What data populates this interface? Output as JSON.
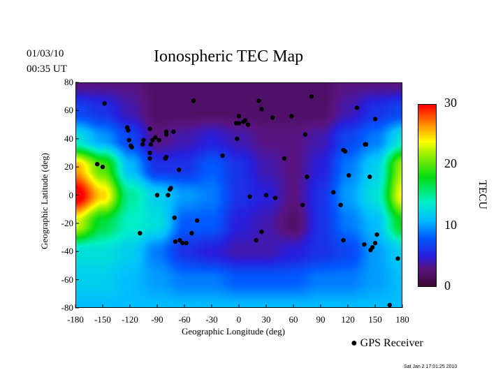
{
  "header": {
    "date": "01/03/10",
    "time": "00:35 UT",
    "title": "Ionospheric TEC Map"
  },
  "legend": {
    "label": "GPS Receiver"
  },
  "footer": {
    "timestamp": "Sat Jan  2 17:01:25 2010"
  },
  "colors": {
    "station": "#000000",
    "coast": "#000000"
  },
  "chart_data": {
    "type": "heatmap",
    "title": "Ionospheric TEC Map",
    "xlabel": "Geographic Longitude (deg)",
    "ylabel": "Geographic Latitude (deg)",
    "xlim": [
      -180,
      180
    ],
    "ylim": [
      -80,
      80
    ],
    "xticks": [
      "-180",
      "-150",
      "-120",
      "-90",
      "-60",
      "-30",
      "0",
      "30",
      "60",
      "90",
      "120",
      "150",
      "180"
    ],
    "yticks": [
      "80",
      "60",
      "40",
      "20",
      "0",
      "-20",
      "-40",
      "-60",
      "-80"
    ],
    "colorbar": {
      "label": "TECU",
      "range": [
        0,
        30
      ],
      "ticks": [
        "30",
        "20",
        "10",
        "0"
      ]
    },
    "grid": {
      "lons": [
        -180,
        -150,
        -120,
        -90,
        -60,
        -30,
        0,
        30,
        60,
        90,
        120,
        150,
        180
      ],
      "lats": [
        80,
        60,
        40,
        20,
        0,
        -20,
        -40,
        -60,
        -80
      ],
      "tec": [
        [
          3,
          3,
          3,
          2,
          2,
          2,
          2,
          2,
          2,
          2,
          3,
          3,
          3
        ],
        [
          7,
          6,
          4,
          2,
          2,
          2,
          2,
          2,
          2,
          2,
          4,
          6,
          7
        ],
        [
          13,
          10,
          7,
          3,
          4,
          5,
          4,
          3,
          3,
          4,
          7,
          9,
          13
        ],
        [
          26,
          20,
          11,
          6,
          6,
          8,
          6,
          4,
          3,
          5,
          9,
          12,
          22
        ],
        [
          31,
          25,
          15,
          12,
          10,
          9,
          6,
          5,
          3,
          6,
          10,
          13,
          24
        ],
        [
          23,
          17,
          14,
          13,
          8,
          8,
          5,
          4,
          2,
          6,
          9,
          11,
          18
        ],
        [
          13,
          13,
          12,
          9,
          6,
          5,
          4,
          4,
          5,
          6,
          7,
          10,
          12
        ],
        [
          12,
          12,
          11,
          10,
          9,
          9,
          8,
          8,
          8,
          9,
          9,
          10,
          11
        ],
        [
          11,
          11,
          11,
          11,
          11,
          11,
          11,
          11,
          11,
          11,
          11,
          11,
          11
        ]
      ]
    },
    "stations": [
      [
        -148,
        65
      ],
      [
        -50,
        67
      ],
      [
        -123,
        48
      ],
      [
        -122,
        46
      ],
      [
        -121,
        39
      ],
      [
        -119,
        35
      ],
      [
        -118,
        34
      ],
      [
        -105,
        39
      ],
      [
        -98,
        47
      ],
      [
        -97,
        36
      ],
      [
        -95,
        39
      ],
      [
        -92,
        41
      ],
      [
        -88,
        39
      ],
      [
        -80,
        43
      ],
      [
        -80,
        45
      ],
      [
        -72,
        45
      ],
      [
        -106,
        36
      ],
      [
        -98,
        30
      ],
      [
        -98,
        26
      ],
      [
        -81,
        26
      ],
      [
        -80,
        27
      ],
      [
        -66,
        18
      ],
      [
        -90,
        0
      ],
      [
        -78,
        0
      ],
      [
        -75,
        5
      ],
      [
        -76,
        4
      ],
      [
        -71,
        -16
      ],
      [
        -109,
        -27
      ],
      [
        -70,
        -33
      ],
      [
        -65,
        -32
      ],
      [
        -62,
        -34
      ],
      [
        -58,
        -34
      ],
      [
        -52,
        -27
      ],
      [
        -46,
        -18
      ],
      [
        -156,
        22
      ],
      [
        -150,
        20
      ],
      [
        -18,
        28
      ],
      [
        -2,
        40
      ],
      [
        -3,
        51
      ],
      [
        0,
        51
      ],
      [
        5,
        52
      ],
      [
        10,
        50
      ],
      [
        7,
        53
      ],
      [
        0,
        56
      ],
      [
        22,
        67
      ],
      [
        25,
        61
      ],
      [
        37,
        55
      ],
      [
        58,
        56
      ],
      [
        80,
        70
      ],
      [
        130,
        62
      ],
      [
        150,
        54
      ],
      [
        73,
        43
      ],
      [
        50,
        26
      ],
      [
        75,
        13
      ],
      [
        70,
        -7
      ],
      [
        40,
        -2
      ],
      [
        30,
        0
      ],
      [
        12,
        -1
      ],
      [
        25,
        -26
      ],
      [
        19,
        -32
      ],
      [
        104,
        2
      ],
      [
        112,
        -7
      ],
      [
        121,
        14
      ],
      [
        115,
        32
      ],
      [
        117,
        31
      ],
      [
        140,
        36
      ],
      [
        139,
        36
      ],
      [
        144,
        13
      ],
      [
        147,
        -37
      ],
      [
        150,
        -34
      ],
      [
        152,
        -28
      ],
      [
        138,
        -35
      ],
      [
        145,
        -39
      ],
      [
        115,
        -32
      ],
      [
        175,
        -45
      ],
      [
        166,
        -78
      ]
    ]
  }
}
